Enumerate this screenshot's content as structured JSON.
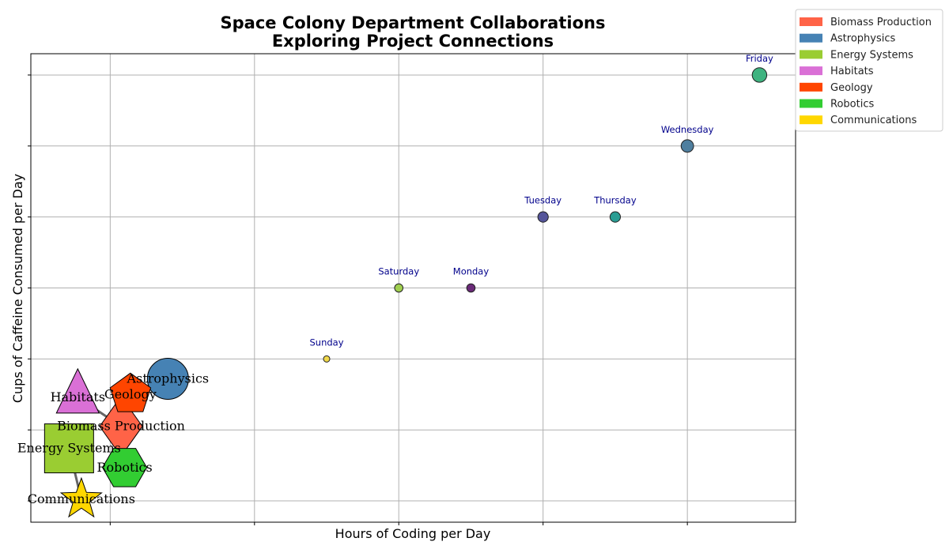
{
  "chart_data": {
    "type": "scatter",
    "title": "Space Colony Department Collaborations",
    "subtitle": "Exploring Project Connections",
    "xlabel": "Hours of Coding per Day",
    "ylabel": "Cups of Caffeine Consumed per Day",
    "xlim": [
      -1.1,
      9.5
    ],
    "ylim": [
      -0.3,
      6.3
    ],
    "xticks": [
      0,
      2,
      4,
      6,
      8
    ],
    "yticks": [
      0,
      1,
      2,
      3,
      4,
      5,
      6
    ],
    "show_tick_labels": false,
    "grid": true,
    "legend_position": "outside top-right",
    "series": [
      {
        "x": 8.0,
        "y": 5.0,
        "label": "Wednesday",
        "color": "#4f7f9f"
      },
      {
        "x": 9.0,
        "y": 6.0,
        "label": "Friday",
        "color": "#3fb380"
      },
      {
        "x": 6.0,
        "y": 4.0,
        "label": "Tuesday",
        "color": "#55559a"
      },
      {
        "x": 7.0,
        "y": 4.0,
        "label": "Thursday",
        "color": "#2a9d93"
      },
      {
        "x": 4.0,
        "y": 3.0,
        "label": "Saturday",
        "color": "#a0cf50"
      },
      {
        "x": 5.0,
        "y": 3.0,
        "label": "Monday",
        "color": "#6a2a78"
      },
      {
        "x": 3.0,
        "y": 2.0,
        "label": "Sunday",
        "color": "#f0d84a"
      }
    ],
    "departments": [
      {
        "name": "Biomass Production",
        "x": 0.15,
        "y": 1.05,
        "shape": "diamond",
        "color": "#ff6347"
      },
      {
        "name": "Astrophysics",
        "x": 0.8,
        "y": 1.72,
        "shape": "circle",
        "color": "#4682b4"
      },
      {
        "name": "Energy Systems",
        "x": -0.57,
        "y": 0.74,
        "shape": "square",
        "color": "#9acd32"
      },
      {
        "name": "Habitats",
        "x": -0.45,
        "y": 1.46,
        "shape": "triangle",
        "color": "#da70d6"
      },
      {
        "name": "Geology",
        "x": 0.28,
        "y": 1.5,
        "shape": "pentagon",
        "color": "#ff4500"
      },
      {
        "name": "Robotics",
        "x": 0.2,
        "y": 0.47,
        "shape": "hexagon",
        "color": "#32cd32"
      },
      {
        "name": "Communications",
        "x": -0.4,
        "y": 0.02,
        "shape": "star",
        "color": "#ffd700"
      }
    ],
    "connections": [
      [
        "Habitats",
        "Biomass Production"
      ],
      [
        "Energy Systems",
        "Communications"
      ],
      [
        "Biomass Production",
        "Geology"
      ]
    ]
  }
}
